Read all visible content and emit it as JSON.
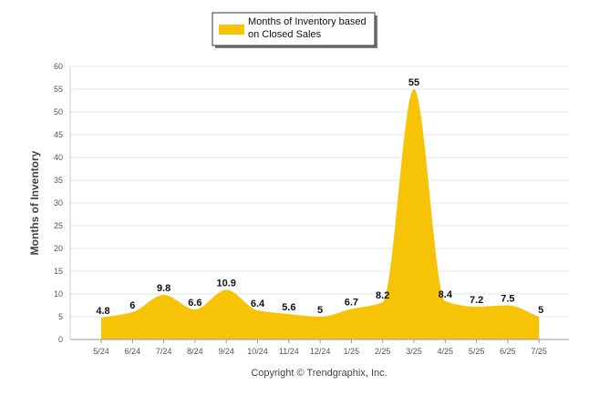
{
  "chart_data": {
    "type": "area",
    "categories": [
      "5/24",
      "6/24",
      "7/24",
      "8/24",
      "9/24",
      "10/24",
      "11/24",
      "12/24",
      "1/25",
      "2/25",
      "3/25",
      "4/25",
      "5/25",
      "6/25",
      "7/25"
    ],
    "series": [
      {
        "name": "Months of Inventory based on Closed Sales",
        "legend_lines": [
          "Months of Inventory based",
          "on Closed Sales"
        ],
        "values": [
          4.8,
          6,
          9.8,
          6.6,
          10.9,
          6.4,
          5.6,
          5,
          6.7,
          8.2,
          55,
          8.4,
          7.2,
          7.5,
          5
        ],
        "labels": [
          "4.8",
          "6",
          "9.8",
          "6.6",
          "10.9",
          "6.4",
          "5.6",
          "5",
          "6.7",
          "8.2",
          "55",
          "8.4",
          "7.2",
          "7.5",
          "5"
        ],
        "color": "#f7c307"
      }
    ],
    "ylabel": "Months of Inventory",
    "xlabel": "",
    "ylim": [
      0,
      60
    ],
    "yticks": [
      "0",
      "5",
      "10",
      "15",
      "20",
      "25",
      "30",
      "35",
      "40",
      "45",
      "50",
      "55",
      "60"
    ],
    "grid": true,
    "legend_position": "top-center"
  },
  "footer": {
    "copyright": "Copyright © Trendgraphix, Inc."
  }
}
